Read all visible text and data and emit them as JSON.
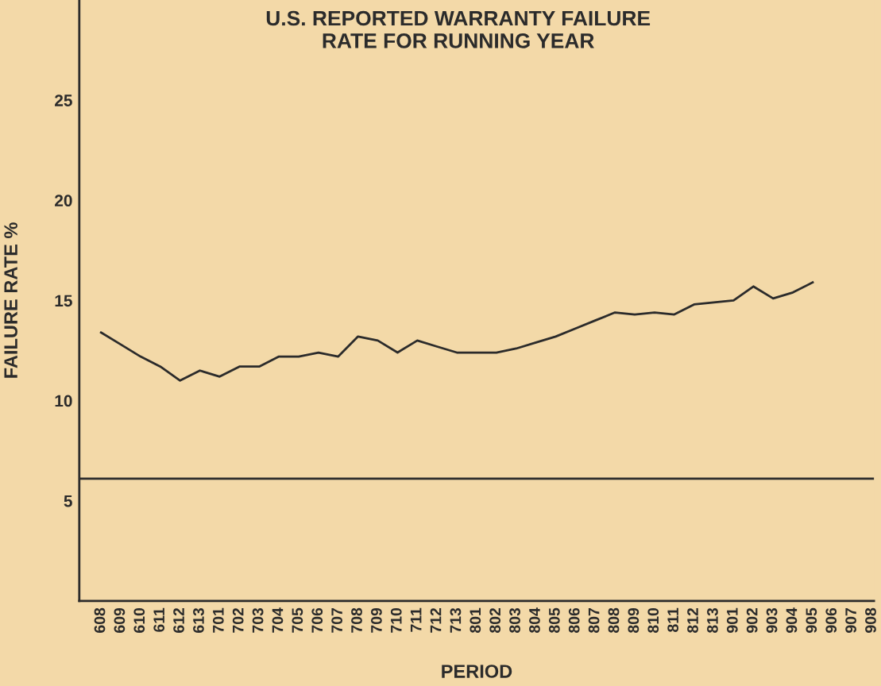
{
  "chart_data": {
    "type": "line",
    "title": "U.S. REPORTED WARRANTY FAILURE\nRATE FOR RUNNING YEAR",
    "xlabel": "PERIOD",
    "ylabel": "FAILURE RATE %",
    "categories": [
      "608",
      "609",
      "610",
      "611",
      "612",
      "613",
      "701",
      "702",
      "703",
      "704",
      "705",
      "706",
      "707",
      "708",
      "709",
      "710",
      "711",
      "712",
      "713",
      "801",
      "802",
      "803",
      "804",
      "805",
      "806",
      "807",
      "808",
      "809",
      "810",
      "811",
      "812",
      "813",
      "901",
      "902",
      "903",
      "904",
      "905",
      "906",
      "907",
      "908"
    ],
    "series": [
      {
        "color": "#2b2b2b",
        "values": [
          13.4,
          12.8,
          12.2,
          11.7,
          11.0,
          11.5,
          11.2,
          11.7,
          11.7,
          12.2,
          12.2,
          12.4,
          12.2,
          13.2,
          13.0,
          12.4,
          13.0,
          12.7,
          12.4,
          12.4,
          12.4,
          12.6,
          12.9,
          13.2,
          13.6,
          14.0,
          14.4,
          14.3,
          14.4,
          14.3,
          14.8,
          14.9,
          15.0,
          15.7,
          15.1,
          15.4,
          15.9,
          null,
          null,
          null
        ]
      }
    ],
    "ylim": [
      0,
      30
    ],
    "yticks": [
      5,
      10,
      15,
      20,
      25
    ],
    "grid": false,
    "marker": "none",
    "line_style": "solid",
    "ref_lines": [
      {
        "axis": "y",
        "value": 6.1,
        "color": "#2b2b2b",
        "line_style": "solid"
      }
    ]
  }
}
